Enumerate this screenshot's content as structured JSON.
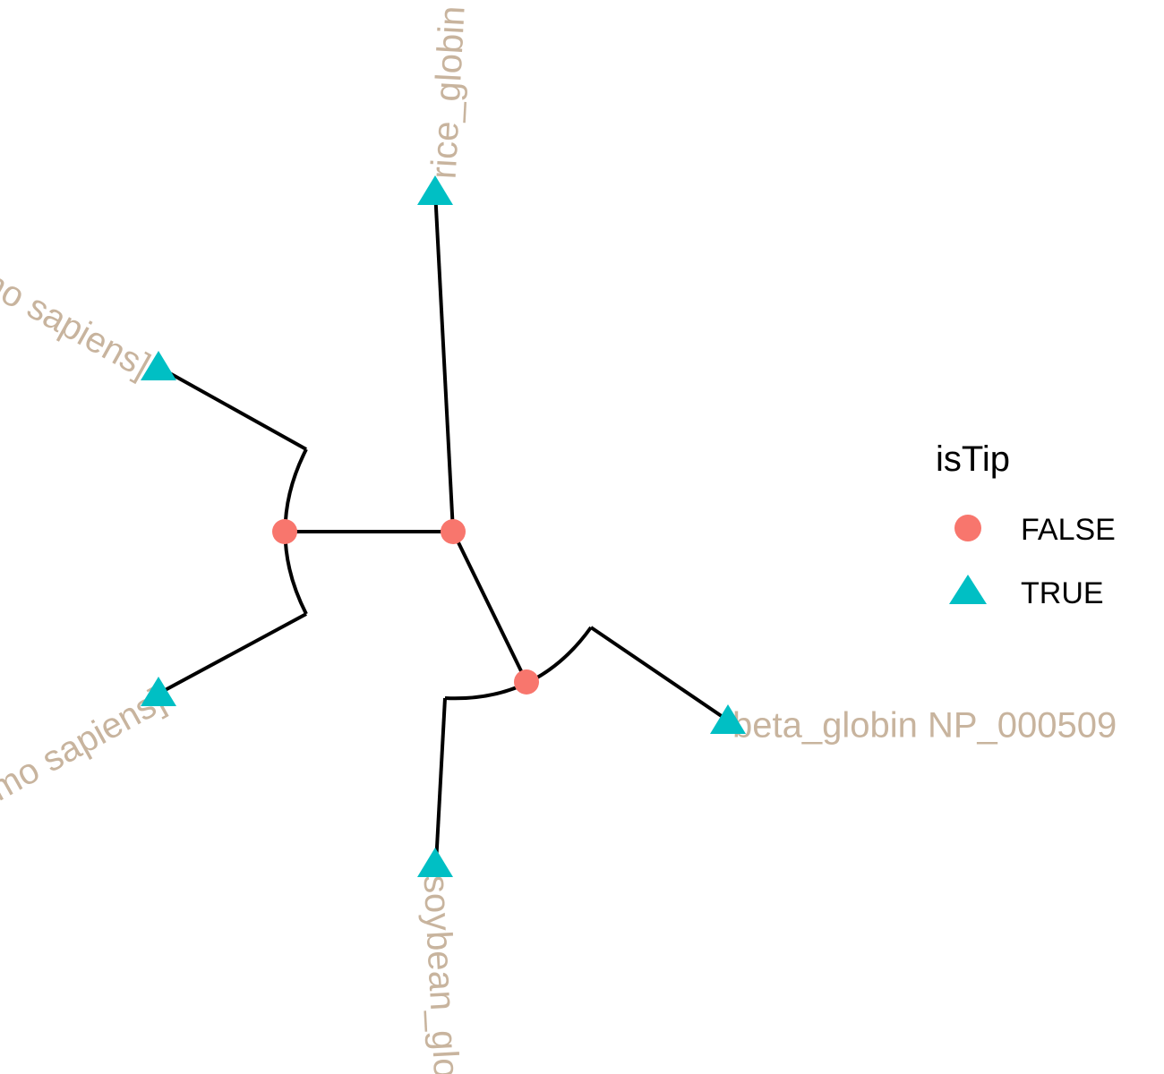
{
  "colors": {
    "branch": "#000000",
    "internal_node": "#F8766D",
    "tip_node": "#00BFC4",
    "tip_label": "#C8B49E",
    "background": "#FFFFFF"
  },
  "tips": [
    {
      "id": "rice",
      "label": "rice_globin"
    },
    {
      "id": "human1",
      "label": "[Homo sapiens]"
    },
    {
      "id": "human2",
      "label": "[Homo sapiens]"
    },
    {
      "id": "soybean",
      "label": "soybean_globin"
    },
    {
      "id": "beta",
      "label": "beta_globin NP_000509"
    }
  ],
  "legend": {
    "title": "isTip",
    "items": [
      {
        "label": "FALSE",
        "shape": "circle",
        "color": "#F8766D"
      },
      {
        "label": "TRUE",
        "shape": "triangle",
        "color": "#00BFC4"
      }
    ]
  }
}
